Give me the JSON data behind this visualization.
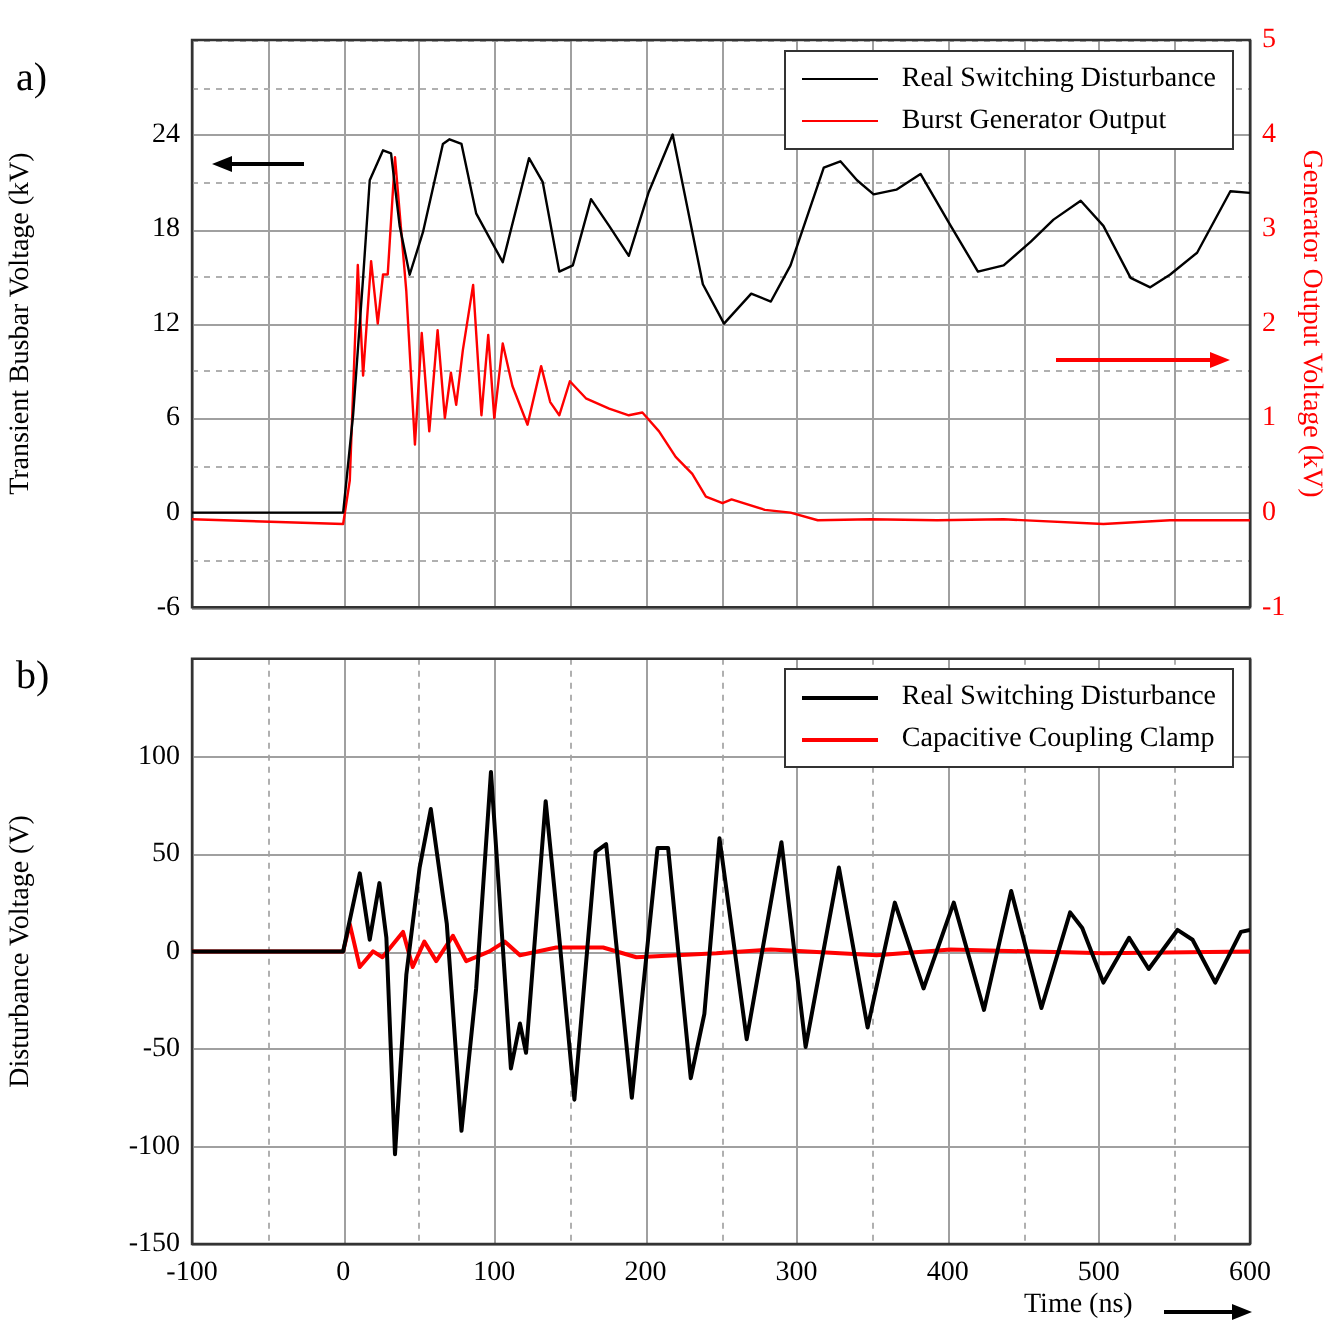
{
  "chart_data": [
    {
      "type": "line",
      "title": "a)",
      "ylabel": "Transient Busbar Voltage (kV)",
      "y2label": "Generator Output Voltage (kV)",
      "xlim": [
        -100,
        600
      ],
      "xticks": [
        -100,
        -50,
        0,
        50,
        100,
        150,
        200,
        250,
        300,
        350,
        400,
        450,
        500,
        550,
        600
      ],
      "ylim": [
        -6,
        30
      ],
      "yticks": [
        -6,
        {
          "value": -3,
          "label": null
        },
        0,
        {
          "value": 3,
          "label": null
        },
        6,
        {
          "value": 9,
          "label": null
        },
        12,
        {
          "value": 15,
          "label": null
        },
        18,
        {
          "value": 21,
          "label": null
        },
        24,
        {
          "value": 27,
          "label": null
        },
        {
          "value": 30,
          "label": null
        }
      ],
      "y2lim": [
        -1,
        5
      ],
      "y2ticks": [
        -1,
        0,
        1,
        2,
        3,
        4,
        5
      ],
      "tick_labels": "y",
      "grid": true,
      "legend": "top right",
      "series": [
        {
          "name": "Real Switching Disturbance",
          "color": "#000000",
          "x": [
            -100,
            0,
            6.6,
            13.2,
            17.6,
            26.4,
            31.7,
            37.4,
            44,
            52.8,
            66,
            70.4,
            78.3,
            88,
            105.6,
            123,
            132,
            143,
            152,
            164,
            176,
            189,
            202,
            218,
            238,
            252,
            270,
            283,
            296,
            318,
            329,
            340,
            351,
            366,
            382,
            402,
            420,
            437,
            455,
            470,
            488,
            503,
            521,
            534,
            547,
            565,
            587,
            600
          ],
          "values": [
            0,
            0,
            6.2,
            14.9,
            21.1,
            23,
            22.8,
            18.2,
            15.1,
            17.8,
            23.4,
            23.7,
            23.4,
            19,
            15.9,
            22.5,
            21,
            15.3,
            15.7,
            19.9,
            18.2,
            16.3,
            20.3,
            24,
            14.5,
            12,
            13.9,
            13.4,
            15.7,
            21.9,
            22.3,
            21.1,
            20.2,
            20.5,
            21.5,
            18.2,
            15.3,
            15.7,
            17.2,
            18.6,
            19.8,
            18.2,
            14.9,
            14.3,
            15.1,
            16.5,
            20.4,
            20.3
          ]
        },
        {
          "name": "Burst Generator Output",
          "color": "#ff0000",
          "axis": "y2",
          "x": [
            -100,
            0,
            4.4,
            9.7,
            13.2,
            18.5,
            22.9,
            26.4,
            29.5,
            34.3,
            41.8,
            47.5,
            52,
            57,
            62.5,
            67.3,
            71.3,
            74.8,
            79.2,
            86,
            91.5,
            96,
            100,
            105.6,
            112,
            122,
            131,
            137,
            143,
            150,
            160.6,
            176,
            189,
            198,
            209,
            220,
            231,
            240,
            251,
            257,
            279,
            296,
            314,
            349,
            393,
            437,
            503,
            547,
            600
          ],
          "values": [
            -0.07,
            -0.12,
            0.34,
            2.62,
            1.45,
            2.66,
            2.0,
            2.52,
            2.52,
            3.76,
            2.34,
            0.72,
            1.9,
            0.86,
            1.93,
            1.0,
            1.48,
            1.14,
            1.72,
            2.41,
            1.03,
            1.88,
            1.0,
            1.79,
            1.34,
            0.93,
            1.55,
            1.17,
            1.03,
            1.39,
            1.21,
            1.1,
            1.03,
            1.06,
            0.86,
            0.59,
            0.41,
            0.17,
            0.1,
            0.14,
            0.03,
            0,
            -0.08,
            -0.07,
            -0.08,
            -0.07,
            -0.12,
            -0.08,
            -0.08
          ]
        }
      ]
    },
    {
      "type": "line",
      "title": "b)",
      "xlabel": "Time (ns)",
      "ylabel": "Disturbance Voltage (V)",
      "xlim": [
        -100,
        600
      ],
      "xticks": [
        -100,
        {
          "value": -50,
          "label": null
        },
        0,
        {
          "value": 50,
          "label": null
        },
        100,
        {
          "value": 150,
          "label": null
        },
        200,
        {
          "value": 250,
          "label": null
        },
        300,
        {
          "value": 350,
          "label": null
        },
        400,
        {
          "value": 450,
          "label": null
        },
        500,
        {
          "value": 550,
          "label": null
        },
        600
      ],
      "ylim": [
        -150,
        150
      ],
      "yticks": [
        -150,
        -100,
        -50,
        0,
        50,
        100,
        {
          "value": 150,
          "label": null
        }
      ],
      "grid": true,
      "legend": "top right",
      "series": [
        {
          "name": "Real Switching Disturbance",
          "color": "#000000",
          "x": [
            -100,
            0,
            11,
            17.6,
            24,
            28.6,
            34.3,
            41.8,
            50.6,
            58,
            68.6,
            78.3,
            88,
            97.8,
            103.5,
            111,
            117,
            121,
            134,
            143,
            153,
            167,
            174,
            191,
            208,
            215,
            230,
            239,
            249,
            267,
            290,
            306,
            328,
            347,
            365,
            384,
            404,
            424,
            442,
            462,
            481,
            489,
            503,
            520,
            533,
            552,
            562,
            577,
            594,
            600
          ],
          "values": [
            0,
            0,
            40,
            6,
            35,
            7,
            -104,
            -12,
            43,
            73,
            14,
            -92,
            -19,
            92,
            27,
            -60,
            -37,
            -52,
            77,
            7,
            -76,
            51,
            55,
            -75,
            53,
            53,
            -65,
            -32,
            58,
            -45,
            56,
            -49,
            43,
            -39,
            25,
            -19,
            25,
            -30,
            31,
            -29,
            20,
            12,
            -16,
            7,
            -9,
            11,
            6,
            -16,
            10,
            11
          ]
        },
        {
          "name": "Capacitive Coupling Clamp",
          "color": "#ff0000",
          "x": [
            -100,
            0,
            4.4,
            11,
            19.8,
            26,
            39.6,
            46,
            53.7,
            61.6,
            72.6,
            81.4,
            96.8,
            107,
            117,
            141,
            172,
            194,
            247,
            283,
            353,
            402,
            503,
            600
          ],
          "values": [
            0,
            0,
            14,
            -8,
            0,
            -3,
            10,
            -8,
            5,
            -5,
            8,
            -5,
            0,
            5,
            -2,
            2,
            2,
            -3,
            -1,
            1,
            -2,
            1,
            -1,
            0
          ]
        }
      ]
    }
  ]
}
